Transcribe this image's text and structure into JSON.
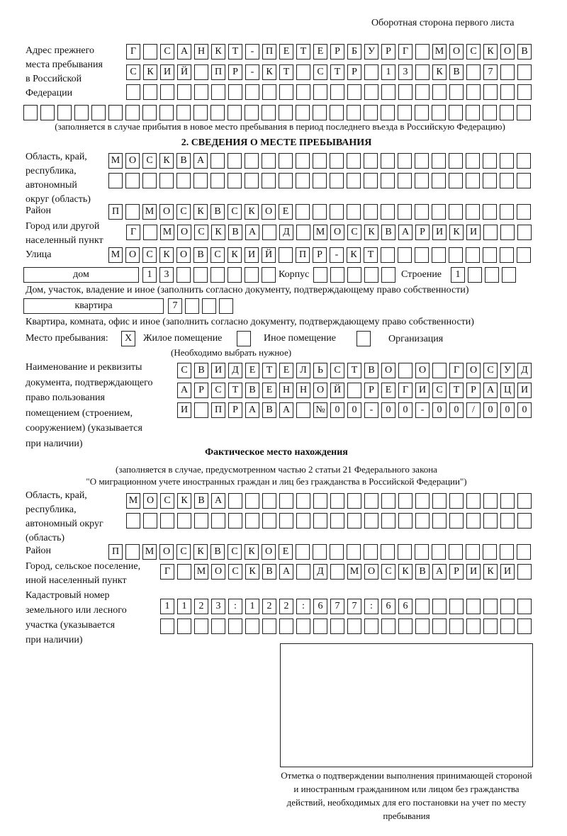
{
  "page_header": "Оборотная сторона первого листа",
  "prev_address": {
    "label": "Адрес прежнего\nместа пребывания\nв Российской\nФедерации",
    "rows": [
      [
        "Г",
        "",
        "С",
        "А",
        "Н",
        "К",
        "Т",
        "-",
        "П",
        "Е",
        "Т",
        "Е",
        "Р",
        "Б",
        "У",
        "Р",
        "Г",
        "",
        "М",
        "О",
        "С",
        "К",
        "О",
        "В"
      ],
      [
        "С",
        "К",
        "И",
        "Й",
        "",
        "П",
        "Р",
        "-",
        "К",
        "Т",
        "",
        "С",
        "Т",
        "Р",
        "",
        "1",
        "3",
        "",
        "К",
        "В",
        "",
        "7",
        "",
        ""
      ],
      [
        "",
        "",
        "",
        "",
        "",
        "",
        "",
        "",
        "",
        "",
        "",
        "",
        "",
        "",
        "",
        "",
        "",
        "",
        "",
        "",
        "",
        "",
        "",
        ""
      ],
      [
        "",
        "",
        "",
        "",
        "",
        "",
        "",
        "",
        "",
        "",
        "",
        "",
        "",
        "",
        "",
        "",
        "",
        "",
        "",
        "",
        "",
        "",
        "",
        "",
        "",
        "",
        "",
        "",
        "",
        ""
      ]
    ],
    "note": "(заполняется в случае прибытия в новое место пребывания в период последнего въезда в Российскую Федерацию)"
  },
  "section2": {
    "title": "2. СВЕДЕНИЯ О МЕСТЕ ПРЕБЫВАНИЯ",
    "region_label": "Область, край,\nреспублика,\nавтономный\nокруг (область)",
    "region_rows": [
      [
        "М",
        "О",
        "С",
        "К",
        "В",
        "А",
        "",
        "",
        "",
        "",
        "",
        "",
        "",
        "",
        "",
        "",
        "",
        "",
        "",
        "",
        "",
        "",
        "",
        "",
        ""
      ],
      [
        "",
        "",
        "",
        "",
        "",
        "",
        "",
        "",
        "",
        "",
        "",
        "",
        "",
        "",
        "",
        "",
        "",
        "",
        "",
        "",
        "",
        "",
        "",
        "",
        ""
      ]
    ],
    "district_label": "Район",
    "district_row": [
      "П",
      "",
      "М",
      "О",
      "С",
      "К",
      "В",
      "С",
      "К",
      "О",
      "Е",
      "",
      "",
      "",
      "",
      "",
      "",
      "",
      "",
      "",
      "",
      "",
      "",
      "",
      ""
    ],
    "city_label": "Город или другой\nнаселенный пункт",
    "city_row": [
      "Г",
      "",
      "М",
      "О",
      "С",
      "К",
      "В",
      "А",
      "",
      "Д",
      "",
      "М",
      "О",
      "С",
      "К",
      "В",
      "А",
      "Р",
      "И",
      "К",
      "И",
      "",
      "",
      ""
    ],
    "street_label": "Улица",
    "street_row": [
      "М",
      "О",
      "С",
      "К",
      "О",
      "В",
      "С",
      "К",
      "И",
      "Й",
      "",
      "П",
      "Р",
      "-",
      "К",
      "Т",
      "",
      "",
      "",
      "",
      "",
      "",
      "",
      "",
      ""
    ],
    "house_type": "дом",
    "house_cells": [
      "1",
      "3",
      "",
      "",
      "",
      "",
      "",
      ""
    ],
    "korpus_label": "Корпус",
    "korpus_cells": [
      "",
      "",
      "",
      "",
      ""
    ],
    "building_label": "Строение",
    "building_cells": [
      "1",
      "",
      "",
      ""
    ],
    "house_note": "Дом, участок, владение и иное (заполнить согласно документу, подтверждающему право собственности)",
    "flat_type": "квартира",
    "flat_cells": [
      "7",
      "",
      "",
      ""
    ],
    "flat_note": "Квартира, комната, офис и иное (заполнить согласно документу, подтверждающему право собственности)",
    "stay_label": "Место пребывания:",
    "stay_options": [
      {
        "label": "Жилое помещение",
        "mark": "Х"
      },
      {
        "label": "Иное помещение",
        "mark": ""
      },
      {
        "label": "Организация",
        "mark": ""
      }
    ],
    "stay_note": "(Необходимо выбрать нужное)",
    "doc_label": "Наименование и реквизиты\nдокумента, подтверждающего\nправо пользования\nпомещением (строением,\nсооружением) (указывается\nпри наличии)",
    "doc_rows": [
      [
        "С",
        "В",
        "И",
        "Д",
        "Е",
        "Т",
        "Е",
        "Л",
        "Ь",
        "С",
        "Т",
        "В",
        "О",
        "",
        "О",
        "",
        "Г",
        "О",
        "С",
        "У",
        "Д"
      ],
      [
        "А",
        "Р",
        "С",
        "Т",
        "В",
        "Е",
        "Н",
        "Н",
        "О",
        "Й",
        "",
        "Р",
        "Е",
        "Г",
        "И",
        "С",
        "Т",
        "Р",
        "А",
        "Ц",
        "И"
      ],
      [
        "И",
        "",
        "П",
        "Р",
        "А",
        "В",
        "А",
        "",
        "№",
        "0",
        "0",
        "-",
        "0",
        "0",
        "-",
        "0",
        "0",
        "/",
        "0",
        "0",
        "0"
      ]
    ]
  },
  "actual": {
    "title": "Фактическое место нахождения",
    "note1": "(заполняется в случае, предусмотренном частью 2 статьи 21 Федерального закона",
    "note2": "\"О миграционном учете иностранных граждан и лиц без гражданства в Российской Федерации\")",
    "region_label": "Область, край,\nреспублика,\nавтономный округ\n(область)",
    "region_rows": [
      [
        "М",
        "О",
        "С",
        "К",
        "В",
        "А",
        "",
        "",
        "",
        "",
        "",
        "",
        "",
        "",
        "",
        "",
        "",
        "",
        "",
        "",
        "",
        "",
        "",
        ""
      ],
      [
        "",
        "",
        "",
        "",
        "",
        "",
        "",
        "",
        "",
        "",
        "",
        "",
        "",
        "",
        "",
        "",
        "",
        "",
        "",
        "",
        "",
        "",
        "",
        ""
      ]
    ],
    "district_label": "Район",
    "district_row": [
      "П",
      "",
      "М",
      "О",
      "С",
      "К",
      "В",
      "С",
      "К",
      "О",
      "Е",
      "",
      "",
      "",
      "",
      "",
      "",
      "",
      "",
      "",
      "",
      "",
      "",
      "",
      ""
    ],
    "city_label": "Город, сельское поселение,\nиной населенный пункт",
    "city_row": [
      "Г",
      "",
      "М",
      "О",
      "С",
      "К",
      "В",
      "А",
      "",
      "Д",
      "",
      "М",
      "О",
      "С",
      "К",
      "В",
      "А",
      "Р",
      "И",
      "К",
      "И",
      ""
    ],
    "cadastre_label": "Кадастровый номер\nземельного или лесного\nучастка (указывается\nпри наличии)",
    "cadastre_rows": [
      [
        "1",
        "1",
        "2",
        "3",
        ":",
        "1",
        "2",
        "2",
        ":",
        "6",
        "7",
        "7",
        ":",
        "6",
        "6",
        "",
        "",
        "",
        "",
        "",
        "",
        ""
      ],
      [
        "",
        "",
        "",
        "",
        "",
        "",
        "",
        "",
        "",
        "",
        "",
        "",
        "",
        "",
        "",
        "",
        "",
        "",
        "",
        "",
        "",
        ""
      ]
    ]
  },
  "stamp_caption": "Отметка о подтверждении выполнения принимающей стороной и иностранным гражданином или лицом без гражданства действий, необходимых для его постановки на учет по месту пребывания"
}
